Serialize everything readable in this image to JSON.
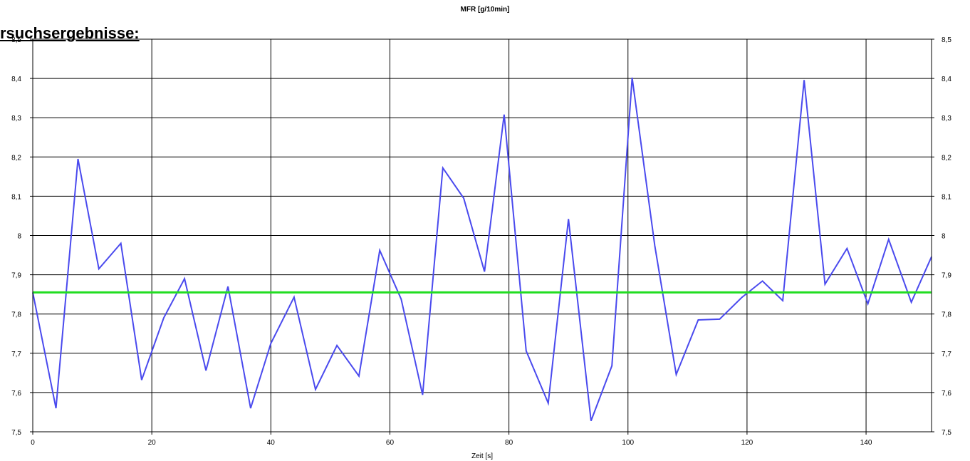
{
  "page": {
    "section_heading": "rsuchsergebnisse:"
  },
  "chart_data": {
    "type": "line",
    "title": "MFR [g/10min]",
    "xlabel": "Zeit [s]",
    "ylabel": "",
    "xlim": [
      0,
      151
    ],
    "ylim": [
      7.5,
      8.5
    ],
    "x_ticks": [
      0,
      20,
      40,
      60,
      80,
      100,
      120,
      140
    ],
    "x_tick_labels": [
      "0",
      "20",
      "40",
      "60",
      "80",
      "100",
      "120",
      "140"
    ],
    "y_ticks": [
      7.5,
      7.6,
      7.7,
      7.8,
      7.9,
      8.0,
      8.1,
      8.2,
      8.3,
      8.4,
      8.5
    ],
    "y_tick_labels": [
      "7,5",
      "7,6",
      "7,7",
      "7,8",
      "7,9",
      "8",
      "8,1",
      "8,2",
      "8,3",
      "8,4",
      "8,5"
    ],
    "grid": true,
    "series": [
      {
        "color": "#4a4aee",
        "points": [
          [
            0,
            7.855
          ],
          [
            3.9,
            7.56
          ],
          [
            7.6,
            8.195
          ],
          [
            11.1,
            7.915
          ],
          [
            14.8,
            7.98
          ],
          [
            18.3,
            7.632
          ],
          [
            22.0,
            7.79
          ],
          [
            25.5,
            7.89
          ],
          [
            29.1,
            7.656
          ],
          [
            32.8,
            7.87
          ],
          [
            36.6,
            7.56
          ],
          [
            40.0,
            7.725
          ],
          [
            43.9,
            7.843
          ],
          [
            47.5,
            7.608
          ],
          [
            51.1,
            7.72
          ],
          [
            54.8,
            7.642
          ],
          [
            58.3,
            7.962
          ],
          [
            61.9,
            7.838
          ],
          [
            65.5,
            7.594
          ],
          [
            68.9,
            8.172
          ],
          [
            72.4,
            8.095
          ],
          [
            75.9,
            7.908
          ],
          [
            79.2,
            8.308
          ],
          [
            82.9,
            7.706
          ],
          [
            86.6,
            7.573
          ],
          [
            90.0,
            8.042
          ],
          [
            93.8,
            7.528
          ],
          [
            97.3,
            7.668
          ],
          [
            100.7,
            8.402
          ],
          [
            104.5,
            7.974
          ],
          [
            108.1,
            7.646
          ],
          [
            111.8,
            7.785
          ],
          [
            115.4,
            7.787
          ],
          [
            119.1,
            7.842
          ],
          [
            122.6,
            7.884
          ],
          [
            126.0,
            7.834
          ],
          [
            129.6,
            8.396
          ],
          [
            133.1,
            7.876
          ],
          [
            136.8,
            7.967
          ],
          [
            140.3,
            7.826
          ],
          [
            143.8,
            7.99
          ],
          [
            147.6,
            7.83
          ],
          [
            151.0,
            7.946
          ]
        ]
      },
      {
        "color": "#22dd22",
        "points": [
          [
            0,
            7.855
          ],
          [
            151,
            7.855
          ]
        ]
      }
    ]
  }
}
